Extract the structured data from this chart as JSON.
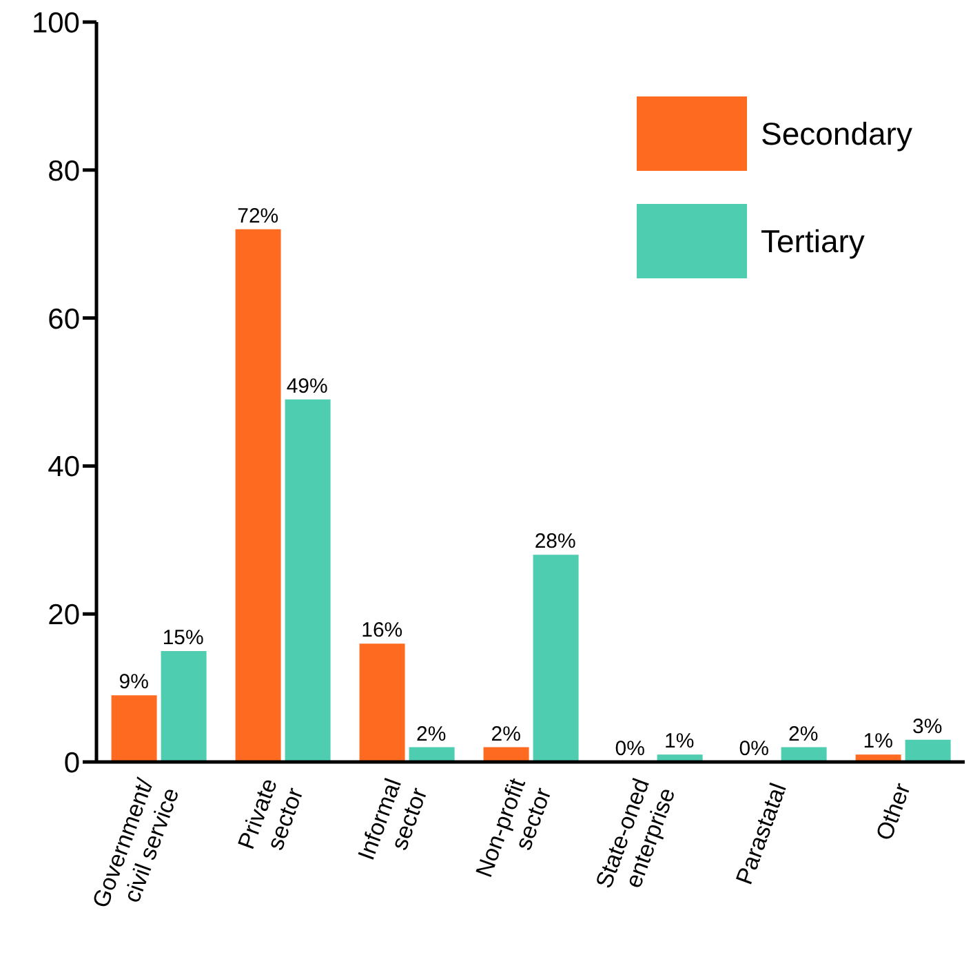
{
  "chart_data": {
    "type": "bar",
    "categories": [
      "Government/\ncivil service",
      "Private\nsector",
      "Informal\nsector",
      "Non-profit\nsector",
      "State-oned\nenterprise",
      "Parastatal",
      "Other"
    ],
    "series": [
      {
        "name": "Secondary",
        "color": "#ff6a21",
        "values": [
          9,
          72,
          16,
          2,
          0,
          0,
          1
        ],
        "value_labels": [
          "9%",
          "72%",
          "16%",
          "2%",
          "0%",
          "0%",
          "1%"
        ]
      },
      {
        "name": "Tertiary",
        "color": "#4ecdb1",
        "values": [
          15,
          49,
          2,
          28,
          1,
          2,
          3
        ],
        "value_labels": [
          "15%",
          "49%",
          "2%",
          "28%",
          "1%",
          "2%",
          "3%"
        ]
      }
    ],
    "ylim": [
      0,
      100
    ],
    "yticks": [
      0,
      20,
      40,
      60,
      80,
      100
    ],
    "grid": false,
    "legend": "top right"
  }
}
